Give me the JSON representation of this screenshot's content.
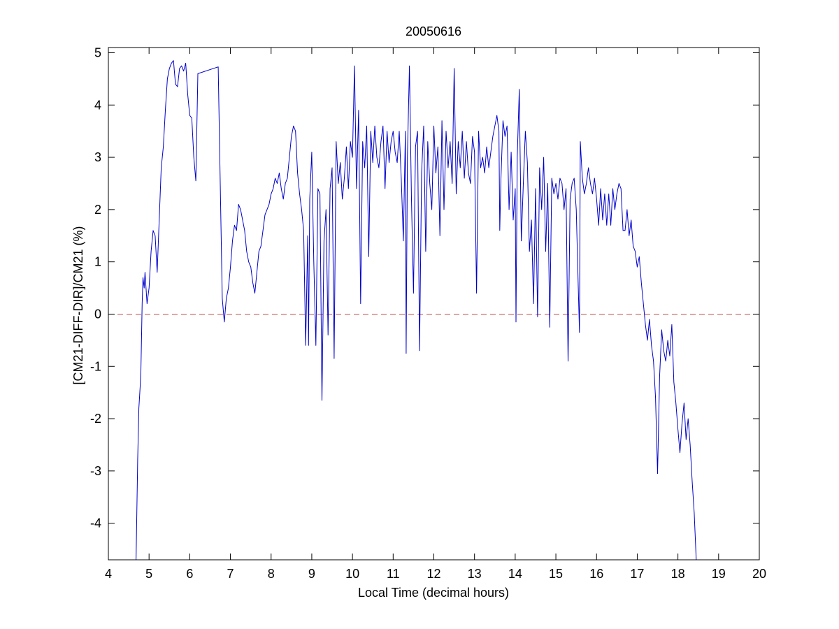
{
  "chart_data": {
    "type": "line",
    "title": "20050616",
    "xlabel": "Local Time (decimal hours)",
    "ylabel": "[CM21-DIFF-DIR]/CM21 (%)",
    "xlim": [
      4,
      20
    ],
    "ylim": [
      -4.7,
      5.1
    ],
    "xticks": [
      4,
      5,
      6,
      7,
      8,
      9,
      10,
      11,
      12,
      13,
      14,
      15,
      16,
      17,
      18,
      19,
      20
    ],
    "yticks": [
      -4,
      -3,
      -2,
      -1,
      0,
      1,
      2,
      3,
      4,
      5
    ],
    "grid": false,
    "reference_line": {
      "y": 0,
      "style": "dashed",
      "color": "#c0504d"
    },
    "series": [
      {
        "color": "#0000cc",
        "points": [
          [
            4.68,
            -4.7
          ],
          [
            4.7,
            -3.8
          ],
          [
            4.72,
            -2.8
          ],
          [
            4.75,
            -1.8
          ],
          [
            4.78,
            -1.4
          ],
          [
            4.8,
            -1.1
          ],
          [
            4.83,
            0.2
          ],
          [
            4.85,
            0.7
          ],
          [
            4.88,
            0.5
          ],
          [
            4.9,
            0.8
          ],
          [
            4.95,
            0.2
          ],
          [
            5.0,
            0.5
          ],
          [
            5.05,
            1.2
          ],
          [
            5.1,
            1.6
          ],
          [
            5.15,
            1.5
          ],
          [
            5.2,
            0.8
          ],
          [
            5.25,
            1.8
          ],
          [
            5.3,
            2.8
          ],
          [
            5.35,
            3.2
          ],
          [
            5.4,
            3.9
          ],
          [
            5.45,
            4.5
          ],
          [
            5.5,
            4.7
          ],
          [
            5.55,
            4.8
          ],
          [
            5.6,
            4.85
          ],
          [
            5.65,
            4.4
          ],
          [
            5.7,
            4.35
          ],
          [
            5.75,
            4.7
          ],
          [
            5.8,
            4.75
          ],
          [
            5.85,
            4.65
          ],
          [
            5.9,
            4.8
          ],
          [
            5.95,
            4.2
          ],
          [
            6.0,
            3.8
          ],
          [
            6.05,
            3.75
          ],
          [
            6.1,
            3.0
          ],
          [
            6.15,
            2.55
          ],
          [
            6.2,
            4.6
          ],
          [
            6.7,
            4.73
          ],
          [
            6.75,
            2.5
          ],
          [
            6.8,
            0.3
          ],
          [
            6.85,
            -0.15
          ],
          [
            6.9,
            0.3
          ],
          [
            6.95,
            0.5
          ],
          [
            7.0,
            0.9
          ],
          [
            7.05,
            1.4
          ],
          [
            7.1,
            1.7
          ],
          [
            7.15,
            1.6
          ],
          [
            7.2,
            2.1
          ],
          [
            7.25,
            2.0
          ],
          [
            7.3,
            1.8
          ],
          [
            7.35,
            1.6
          ],
          [
            7.4,
            1.2
          ],
          [
            7.45,
            1.0
          ],
          [
            7.5,
            0.9
          ],
          [
            7.55,
            0.6
          ],
          [
            7.6,
            0.4
          ],
          [
            7.65,
            0.8
          ],
          [
            7.7,
            1.2
          ],
          [
            7.75,
            1.3
          ],
          [
            7.8,
            1.6
          ],
          [
            7.85,
            1.9
          ],
          [
            7.9,
            2.0
          ],
          [
            7.95,
            2.1
          ],
          [
            8.0,
            2.3
          ],
          [
            8.05,
            2.4
          ],
          [
            8.1,
            2.6
          ],
          [
            8.15,
            2.5
          ],
          [
            8.2,
            2.7
          ],
          [
            8.25,
            2.4
          ],
          [
            8.3,
            2.2
          ],
          [
            8.35,
            2.5
          ],
          [
            8.4,
            2.6
          ],
          [
            8.45,
            3.0
          ],
          [
            8.5,
            3.4
          ],
          [
            8.55,
            3.6
          ],
          [
            8.6,
            3.5
          ],
          [
            8.65,
            2.7
          ],
          [
            8.7,
            2.3
          ],
          [
            8.75,
            2.0
          ],
          [
            8.8,
            1.6
          ],
          [
            8.85,
            -0.6
          ],
          [
            8.9,
            1.5
          ],
          [
            8.92,
            -0.6
          ],
          [
            8.95,
            2.2
          ],
          [
            9.0,
            3.1
          ],
          [
            9.05,
            1.0
          ],
          [
            9.1,
            -0.6
          ],
          [
            9.15,
            2.4
          ],
          [
            9.2,
            2.3
          ],
          [
            9.25,
            -1.65
          ],
          [
            9.3,
            1.4
          ],
          [
            9.35,
            2.0
          ],
          [
            9.4,
            -0.4
          ],
          [
            9.45,
            2.4
          ],
          [
            9.5,
            2.8
          ],
          [
            9.55,
            -0.85
          ],
          [
            9.6,
            3.3
          ],
          [
            9.65,
            2.5
          ],
          [
            9.7,
            2.9
          ],
          [
            9.75,
            2.2
          ],
          [
            9.8,
            2.6
          ],
          [
            9.85,
            3.2
          ],
          [
            9.9,
            2.4
          ],
          [
            9.95,
            3.3
          ],
          [
            10.0,
            3.0
          ],
          [
            10.05,
            4.75
          ],
          [
            10.1,
            2.4
          ],
          [
            10.15,
            3.9
          ],
          [
            10.2,
            0.2
          ],
          [
            10.25,
            3.3
          ],
          [
            10.3,
            2.8
          ],
          [
            10.35,
            3.6
          ],
          [
            10.4,
            1.1
          ],
          [
            10.45,
            3.5
          ],
          [
            10.5,
            2.9
          ],
          [
            10.55,
            3.6
          ],
          [
            10.6,
            3.0
          ],
          [
            10.65,
            2.8
          ],
          [
            10.7,
            3.3
          ],
          [
            10.75,
            3.6
          ],
          [
            10.8,
            2.4
          ],
          [
            10.85,
            3.5
          ],
          [
            10.9,
            2.9
          ],
          [
            10.95,
            3.3
          ],
          [
            11.0,
            3.5
          ],
          [
            11.05,
            3.1
          ],
          [
            11.1,
            2.9
          ],
          [
            11.15,
            3.5
          ],
          [
            11.2,
            2.6
          ],
          [
            11.25,
            1.4
          ],
          [
            11.3,
            3.5
          ],
          [
            11.32,
            -0.75
          ],
          [
            11.35,
            3.0
          ],
          [
            11.4,
            4.75
          ],
          [
            11.45,
            2.2
          ],
          [
            11.5,
            0.4
          ],
          [
            11.55,
            3.2
          ],
          [
            11.6,
            3.5
          ],
          [
            11.65,
            -0.7
          ],
          [
            11.7,
            2.7
          ],
          [
            11.75,
            3.6
          ],
          [
            11.8,
            1.2
          ],
          [
            11.85,
            3.3
          ],
          [
            11.9,
            2.5
          ],
          [
            11.95,
            2.0
          ],
          [
            12.0,
            3.6
          ],
          [
            12.05,
            2.7
          ],
          [
            12.1,
            3.2
          ],
          [
            12.15,
            1.5
          ],
          [
            12.2,
            3.7
          ],
          [
            12.25,
            2.0
          ],
          [
            12.3,
            3.5
          ],
          [
            12.35,
            2.8
          ],
          [
            12.4,
            3.3
          ],
          [
            12.45,
            2.5
          ],
          [
            12.5,
            4.7
          ],
          [
            12.55,
            2.3
          ],
          [
            12.6,
            3.3
          ],
          [
            12.65,
            2.8
          ],
          [
            12.7,
            3.5
          ],
          [
            12.75,
            2.6
          ],
          [
            12.8,
            3.3
          ],
          [
            12.85,
            2.7
          ],
          [
            12.9,
            2.5
          ],
          [
            12.95,
            3.4
          ],
          [
            13.0,
            3.1
          ],
          [
            13.05,
            0.4
          ],
          [
            13.1,
            3.5
          ],
          [
            13.15,
            2.8
          ],
          [
            13.2,
            3.0
          ],
          [
            13.25,
            2.7
          ],
          [
            13.3,
            3.2
          ],
          [
            13.35,
            2.8
          ],
          [
            13.4,
            3.1
          ],
          [
            13.45,
            3.4
          ],
          [
            13.5,
            3.6
          ],
          [
            13.55,
            3.8
          ],
          [
            13.6,
            3.5
          ],
          [
            13.62,
            1.6
          ],
          [
            13.65,
            2.6
          ],
          [
            13.7,
            3.7
          ],
          [
            13.75,
            3.4
          ],
          [
            13.8,
            3.6
          ],
          [
            13.85,
            2.0
          ],
          [
            13.9,
            3.1
          ],
          [
            13.95,
            1.8
          ],
          [
            14.0,
            2.4
          ],
          [
            14.02,
            -0.15
          ],
          [
            14.05,
            3.0
          ],
          [
            14.1,
            4.3
          ],
          [
            14.15,
            1.4
          ],
          [
            14.2,
            2.5
          ],
          [
            14.25,
            3.5
          ],
          [
            14.3,
            2.9
          ],
          [
            14.35,
            1.2
          ],
          [
            14.4,
            1.8
          ],
          [
            14.45,
            0.2
          ],
          [
            14.5,
            2.4
          ],
          [
            14.55,
            -0.05
          ],
          [
            14.6,
            2.8
          ],
          [
            14.65,
            2.0
          ],
          [
            14.7,
            3.0
          ],
          [
            14.75,
            1.2
          ],
          [
            14.8,
            2.5
          ],
          [
            14.85,
            -0.25
          ],
          [
            14.9,
            2.6
          ],
          [
            14.95,
            2.3
          ],
          [
            15.0,
            2.5
          ],
          [
            15.05,
            2.2
          ],
          [
            15.1,
            2.6
          ],
          [
            15.15,
            2.5
          ],
          [
            15.2,
            2.0
          ],
          [
            15.25,
            2.4
          ],
          [
            15.3,
            -0.9
          ],
          [
            15.35,
            2.2
          ],
          [
            15.4,
            2.5
          ],
          [
            15.45,
            2.6
          ],
          [
            15.5,
            2.0
          ],
          [
            15.55,
            0.5
          ],
          [
            15.58,
            -0.35
          ],
          [
            15.6,
            3.3
          ],
          [
            15.65,
            2.6
          ],
          [
            15.7,
            2.3
          ],
          [
            15.75,
            2.5
          ],
          [
            15.8,
            2.8
          ],
          [
            15.85,
            2.5
          ],
          [
            15.9,
            2.3
          ],
          [
            15.95,
            2.6
          ],
          [
            16.0,
            2.2
          ],
          [
            16.05,
            1.7
          ],
          [
            16.1,
            2.4
          ],
          [
            16.15,
            1.8
          ],
          [
            16.2,
            2.3
          ],
          [
            16.25,
            1.7
          ],
          [
            16.3,
            2.3
          ],
          [
            16.35,
            1.7
          ],
          [
            16.4,
            2.4
          ],
          [
            16.45,
            2.0
          ],
          [
            16.5,
            2.3
          ],
          [
            16.55,
            2.5
          ],
          [
            16.6,
            2.4
          ],
          [
            16.65,
            1.6
          ],
          [
            16.7,
            1.6
          ],
          [
            16.75,
            2.0
          ],
          [
            16.8,
            1.5
          ],
          [
            16.85,
            1.8
          ],
          [
            16.9,
            1.3
          ],
          [
            16.95,
            1.2
          ],
          [
            17.0,
            0.9
          ],
          [
            17.05,
            1.1
          ],
          [
            17.1,
            0.6
          ],
          [
            17.15,
            0.2
          ],
          [
            17.2,
            -0.2
          ],
          [
            17.25,
            -0.5
          ],
          [
            17.3,
            -0.1
          ],
          [
            17.35,
            -0.6
          ],
          [
            17.4,
            -0.9
          ],
          [
            17.45,
            -1.6
          ],
          [
            17.5,
            -3.05
          ],
          [
            17.55,
            -1.2
          ],
          [
            17.6,
            -0.3
          ],
          [
            17.65,
            -0.7
          ],
          [
            17.7,
            -0.9
          ],
          [
            17.75,
            -0.5
          ],
          [
            17.8,
            -0.8
          ],
          [
            17.85,
            -0.2
          ],
          [
            17.9,
            -1.3
          ],
          [
            17.95,
            -1.7
          ],
          [
            18.0,
            -2.2
          ],
          [
            18.05,
            -2.65
          ],
          [
            18.1,
            -2.1
          ],
          [
            18.15,
            -1.7
          ],
          [
            18.2,
            -2.4
          ],
          [
            18.25,
            -2.0
          ],
          [
            18.3,
            -2.5
          ],
          [
            18.35,
            -3.2
          ],
          [
            18.4,
            -3.8
          ],
          [
            18.45,
            -4.7
          ]
        ]
      }
    ]
  }
}
